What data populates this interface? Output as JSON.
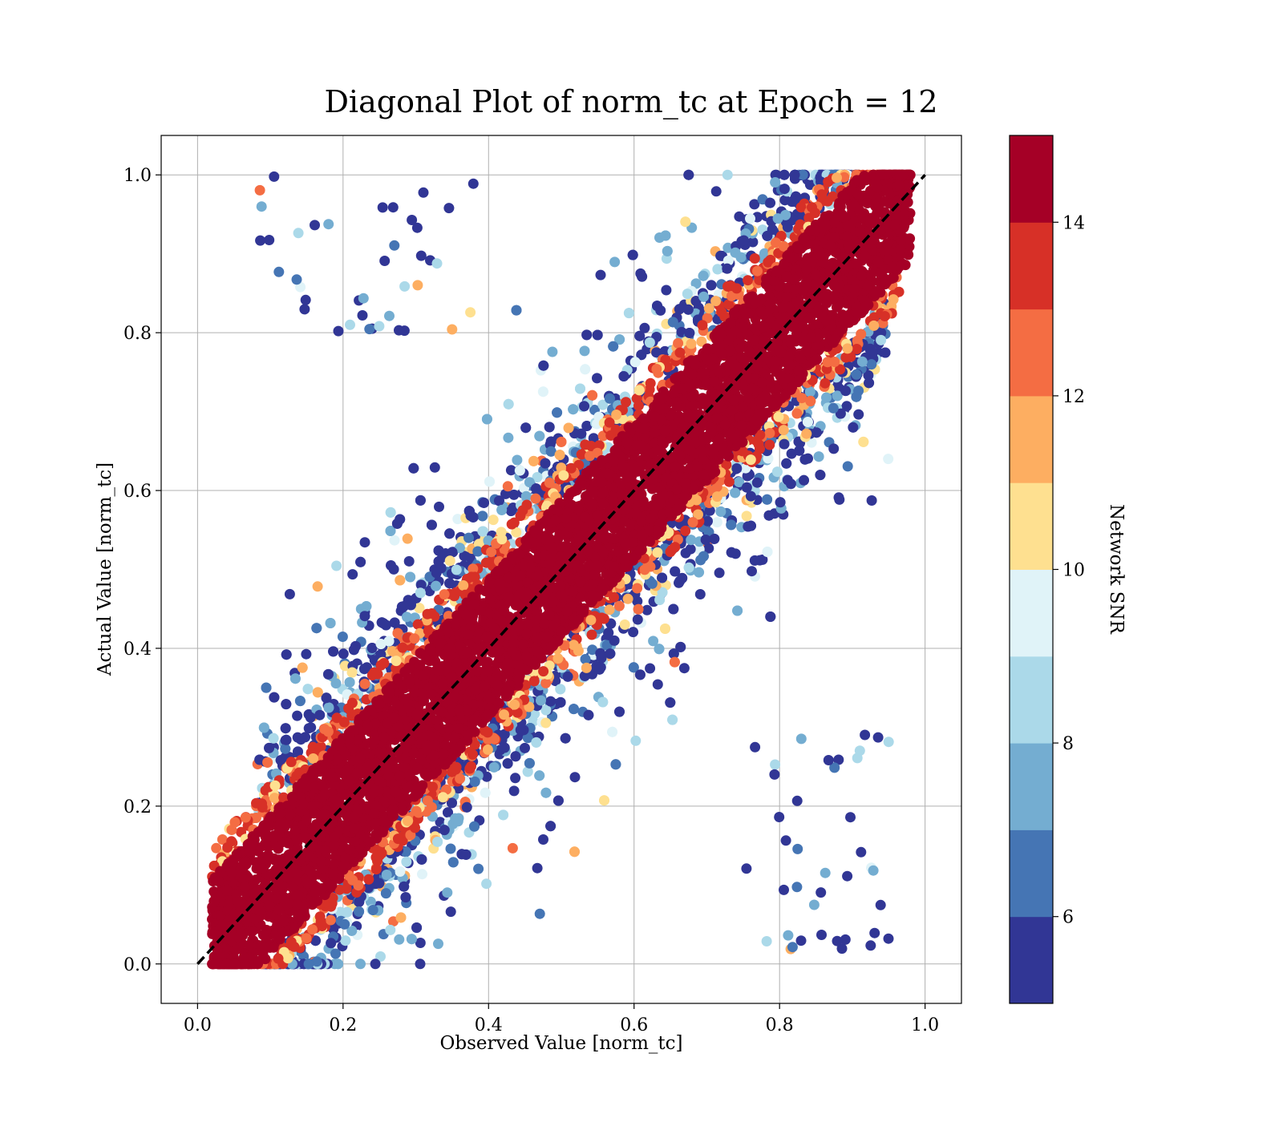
{
  "chart_data": {
    "type": "scatter",
    "title": "Diagonal Plot of norm_tc at Epoch = 12",
    "xlabel": "Observed Value [norm_tc]",
    "ylabel": "Actual Value [norm_tc]",
    "xlim": [
      -0.05,
      1.05
    ],
    "ylim": [
      -0.05,
      1.05
    ],
    "x_ticks": [
      "0.0",
      "0.2",
      "0.4",
      "0.6",
      "0.8",
      "1.0"
    ],
    "y_ticks": [
      "0.0",
      "0.2",
      "0.4",
      "0.6",
      "0.8",
      "1.0"
    ],
    "grid": true,
    "reference_line": {
      "style": "dashed",
      "color": "#000000",
      "from": [
        0,
        0
      ],
      "to": [
        1,
        1
      ]
    },
    "colorbar": {
      "label": "Network SNR",
      "range": [
        5,
        15
      ],
      "ticks": [
        "6",
        "8",
        "10",
        "12",
        "14"
      ],
      "colors": [
        "#313695",
        "#4575b4",
        "#74add1",
        "#abd9e9",
        "#e0f3f8",
        "#fee090",
        "#fdae61",
        "#f46d43",
        "#d73027",
        "#a50026"
      ]
    },
    "series": [
      {
        "snr": 15,
        "band": "core",
        "half_width": 0.085,
        "x_range": [
          0.02,
          0.98
        ]
      },
      {
        "snr": 13.5,
        "band": "edge",
        "half_width": 0.105,
        "x_range": [
          0.02,
          0.97
        ]
      },
      {
        "snr": 11,
        "band": "edge",
        "half_width": 0.125,
        "x_range": [
          0.03,
          0.96
        ]
      },
      {
        "snr": 7,
        "band": "scatter",
        "half_width": 0.45,
        "x_range": [
          0.08,
          0.95
        ]
      },
      {
        "snr": 5.5,
        "band": "scatter",
        "half_width": 0.5,
        "x_range": [
          0.08,
          0.95
        ]
      }
    ]
  }
}
